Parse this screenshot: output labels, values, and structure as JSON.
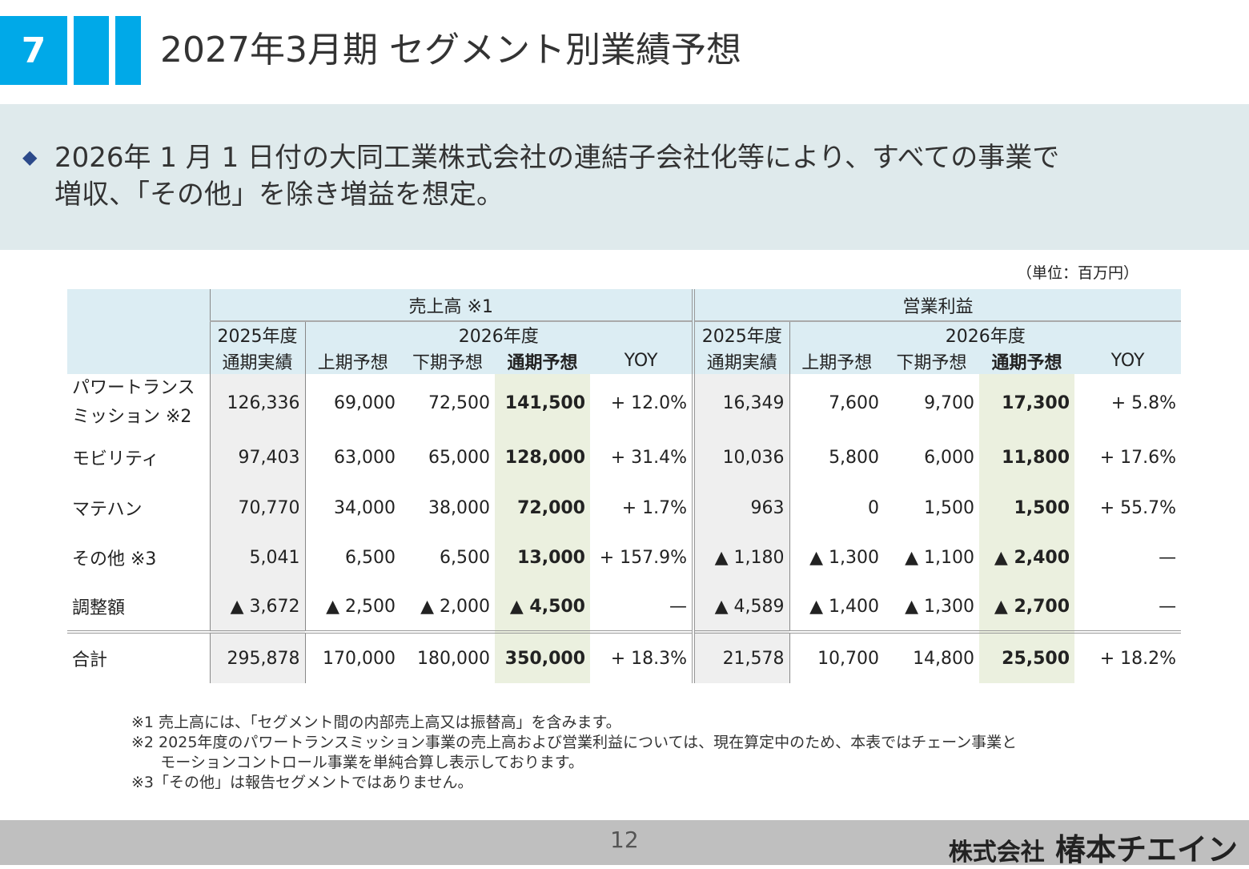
{
  "slide": {
    "section_number": "7",
    "title": "2027年3月期 セグメント別業績予想",
    "lead_line1": "2026年 1 月 1 日付の大同工業株式会社の連結子会社化等により、すべての事業で",
    "lead_line2": "増収、「その他」を除き増益を想定。",
    "unit": "（単位：百万円）",
    "page_number": "12",
    "company_small": "株式会社",
    "company_name": "椿本チエイン"
  },
  "table": {
    "group_sales": "売上高 ※1",
    "group_op": "営業利益",
    "fy2025": "2025年度",
    "fy2026": "2026年度",
    "col_actual": "通期実績",
    "col_h1": "上期予想",
    "col_h2": "下期予想",
    "col_full": "通期予想",
    "col_yoy": "YOY",
    "rows": [
      {
        "name1": "パワートランス",
        "name2": "ミッション ※2",
        "s_act": "126,336",
        "s_h1": "69,000",
        "s_h2": "72,500",
        "s_full": "141,500",
        "s_yoy": "+ 12.0%",
        "o_act": "16,349",
        "o_h1": "7,600",
        "o_h2": "9,700",
        "o_full": "17,300",
        "o_yoy": "+ 5.8%"
      },
      {
        "name1": "モビリティ",
        "s_act": "97,403",
        "s_h1": "63,000",
        "s_h2": "65,000",
        "s_full": "128,000",
        "s_yoy": "+ 31.4%",
        "o_act": "10,036",
        "o_h1": "5,800",
        "o_h2": "6,000",
        "o_full": "11,800",
        "o_yoy": "+ 17.6%"
      },
      {
        "name1": "マテハン",
        "s_act": "70,770",
        "s_h1": "34,000",
        "s_h2": "38,000",
        "s_full": "72,000",
        "s_yoy": "+ 1.7%",
        "o_act": "963",
        "o_h1": "0",
        "o_h2": "1,500",
        "o_full": "1,500",
        "o_yoy": "+ 55.7%"
      },
      {
        "name1": "その他 ※3",
        "s_act": "5,041",
        "s_h1": "6,500",
        "s_h2": "6,500",
        "s_full": "13,000",
        "s_yoy": "+ 157.9%",
        "o_act": "▲ 1,180",
        "o_h1": "▲ 1,300",
        "o_h2": "▲ 1,100",
        "o_full": "▲ 2,400",
        "o_yoy": "—"
      },
      {
        "name1": "調整額",
        "s_act": "▲ 3,672",
        "s_h1": "▲ 2,500",
        "s_h2": "▲ 2,000",
        "s_full": "▲ 4,500",
        "s_yoy": "—",
        "o_act": "▲ 4,589",
        "o_h1": "▲ 1,400",
        "o_h2": "▲ 1,300",
        "o_full": "▲ 2,700",
        "o_yoy": "—"
      }
    ],
    "total": {
      "name1": "合計",
      "s_act": "295,878",
      "s_h1": "170,000",
      "s_h2": "180,000",
      "s_full": "350,000",
      "s_yoy": "+ 18.3%",
      "o_act": "21,578",
      "o_h1": "10,700",
      "o_h2": "14,800",
      "o_full": "25,500",
      "o_yoy": "+ 18.2%"
    }
  },
  "notes": {
    "n1": "※1 売上高には、「セグメント間の内部売上高又は振替高」を含みます。",
    "n2a": "※2  2025年度のパワートランスミッション事業の売上高および営業利益については、現在算定中のため、本表ではチェーン事業と",
    "n2b": "      モーションコントロール事業を単純合算し表示しております。",
    "n3": "※3「その他」は報告セグメントではありません。"
  }
}
